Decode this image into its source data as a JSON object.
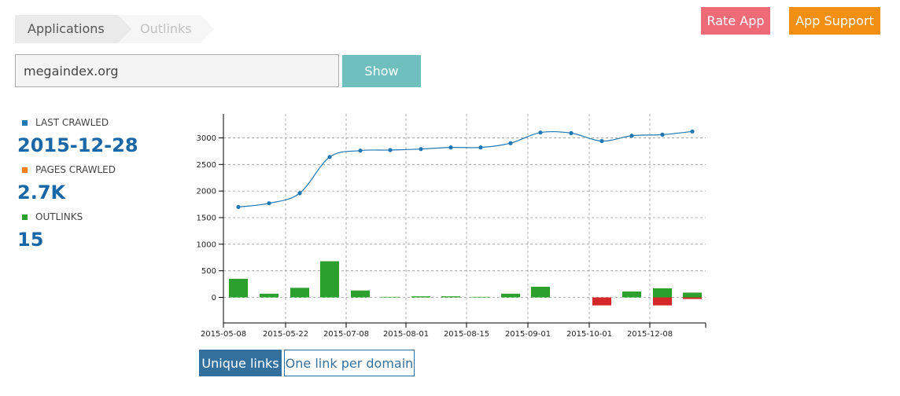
{
  "breadcrumb": {
    "items": [
      "Applications",
      "Outlinks"
    ]
  },
  "header": {
    "rate_label": "Rate App",
    "support_label": "App Support"
  },
  "search": {
    "value": "megaindex.org",
    "show_label": "Show"
  },
  "stats": [
    {
      "label": "LAST CRAWLED",
      "value": "2015-12-28",
      "color": "#1f77b4"
    },
    {
      "label": "PAGES CRAWLED",
      "value": "2.7K",
      "color": "#ff7f0e"
    },
    {
      "label": "OUTLINKS",
      "value": "15",
      "color": "#2ca02c"
    }
  ],
  "toggles": {
    "unique_label": "Unique links",
    "per_domain_label": "One link per domain"
  },
  "chart_data": {
    "type": "line+bar",
    "x_tick_labels": [
      "2015-05-08",
      "2015-05-22",
      "2015-07-08",
      "2015-08-01",
      "2015-08-15",
      "2015-09-01",
      "2015-10-01",
      "2015-12-08"
    ],
    "y_ticks": [
      0,
      500,
      1000,
      1500,
      2000,
      2500,
      3000
    ],
    "ylim": [
      -480,
      3450
    ],
    "grid": true,
    "line_color": "#1f77b4",
    "line_values": [
      1700,
      1770,
      1960,
      2640,
      2760,
      2770,
      2790,
      2820,
      2820,
      2900,
      3100,
      3090,
      null,
      2940,
      3040,
      3060,
      3120
    ],
    "bars_positive": [
      350,
      70,
      180,
      680,
      130,
      10,
      20,
      20,
      10,
      70,
      200,
      0,
      0,
      110,
      170,
      90
    ],
    "bars_negative": [
      0,
      0,
      0,
      0,
      0,
      0,
      0,
      0,
      0,
      0,
      0,
      0,
      -150,
      0,
      -150,
      -30
    ],
    "positive_color": "#2ca02c",
    "negative_color": "#d62728"
  }
}
